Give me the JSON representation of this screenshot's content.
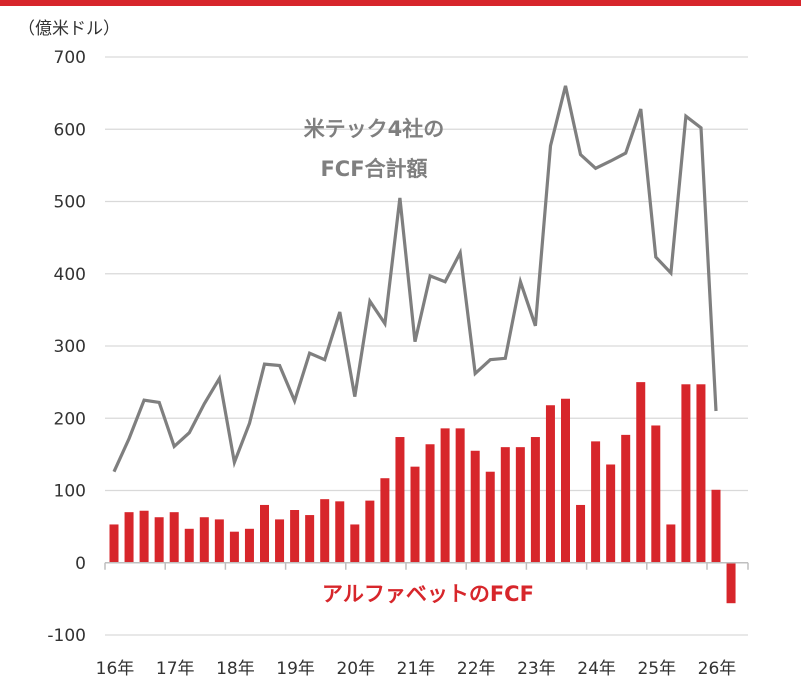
{
  "chart_data": {
    "type": "bar+line",
    "unit_label": "（億米ドル）",
    "ylim": [
      -100,
      700
    ],
    "yticks": [
      700,
      600,
      500,
      400,
      300,
      200,
      100,
      0,
      -100
    ],
    "xtick_labels": [
      "16年",
      "17年",
      "18年",
      "19年",
      "20年",
      "21年",
      "22年",
      "23年",
      "24年",
      "25年",
      "26年"
    ],
    "grid": true,
    "colors": {
      "line": "#7f7f7f",
      "bar": "#d7262b",
      "grid": "#d9d9d9"
    },
    "series": [
      {
        "name": "米テック4社の FCF合計額",
        "name_lines": [
          "米テック4社の",
          "FCF合計額"
        ],
        "type": "line",
        "values": [
          126,
          172,
          225,
          222,
          161,
          180,
          220,
          255,
          139,
          193,
          275,
          273,
          224,
          290,
          281,
          347,
          230,
          362,
          331,
          505,
          306,
          397,
          389,
          429,
          262,
          281,
          283,
          389,
          328,
          577,
          660,
          565,
          546,
          556,
          567,
          628,
          423,
          401,
          618,
          602,
          210
        ]
      },
      {
        "name": "アルファベットのFCF",
        "type": "bar",
        "values": [
          53,
          70,
          72,
          63,
          70,
          47,
          63,
          60,
          43,
          47,
          80,
          60,
          73,
          66,
          88,
          85,
          53,
          86,
          117,
          174,
          133,
          164,
          186,
          186,
          155,
          126,
          160,
          160,
          174,
          218,
          227,
          80,
          168,
          136,
          177,
          250,
          190,
          53,
          247,
          247,
          101,
          -56
        ]
      }
    ]
  }
}
